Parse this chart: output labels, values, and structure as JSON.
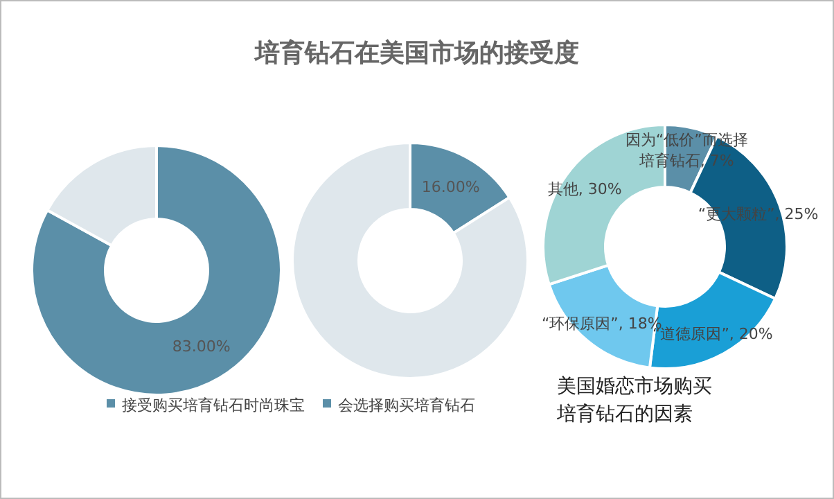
{
  "chart_data": [
    {
      "type": "donut",
      "categories": [
        "接受购买培育钻石时尚珠宝",
        null
      ],
      "values": [
        83,
        17
      ],
      "colors": [
        "#5b8fa8",
        "#dfe7ec"
      ],
      "value_labels": [
        "83.00%",
        null
      ],
      "legend": "bottom"
    },
    {
      "type": "donut",
      "title": "培育钻石在美国市场的接受度",
      "categories": [
        "会选择购买培育钻石",
        null
      ],
      "values": [
        16,
        84
      ],
      "colors": [
        "#5b8fa8",
        "#dfe7ec"
      ],
      "value_labels": [
        "16.00%",
        null
      ],
      "legend": "bottom"
    },
    {
      "type": "donut",
      "title": "美国婚恋市场购买培育钻石的因素",
      "categories": [
        "因为“低价”而选择培育钻石",
        "“更大颗粒”",
        "“道德原因”",
        "“环保原因”",
        "其他"
      ],
      "values": [
        7,
        25,
        20,
        18,
        30
      ],
      "colors": [
        "#5b8fa8",
        "#0e5f86",
        "#1a9fd6",
        "#6fc8ee",
        "#9fd4d4"
      ],
      "value_labels": [
        ", 7%",
        ", 25%",
        ", 20%",
        ", 18%",
        ", 30%"
      ]
    }
  ]
}
